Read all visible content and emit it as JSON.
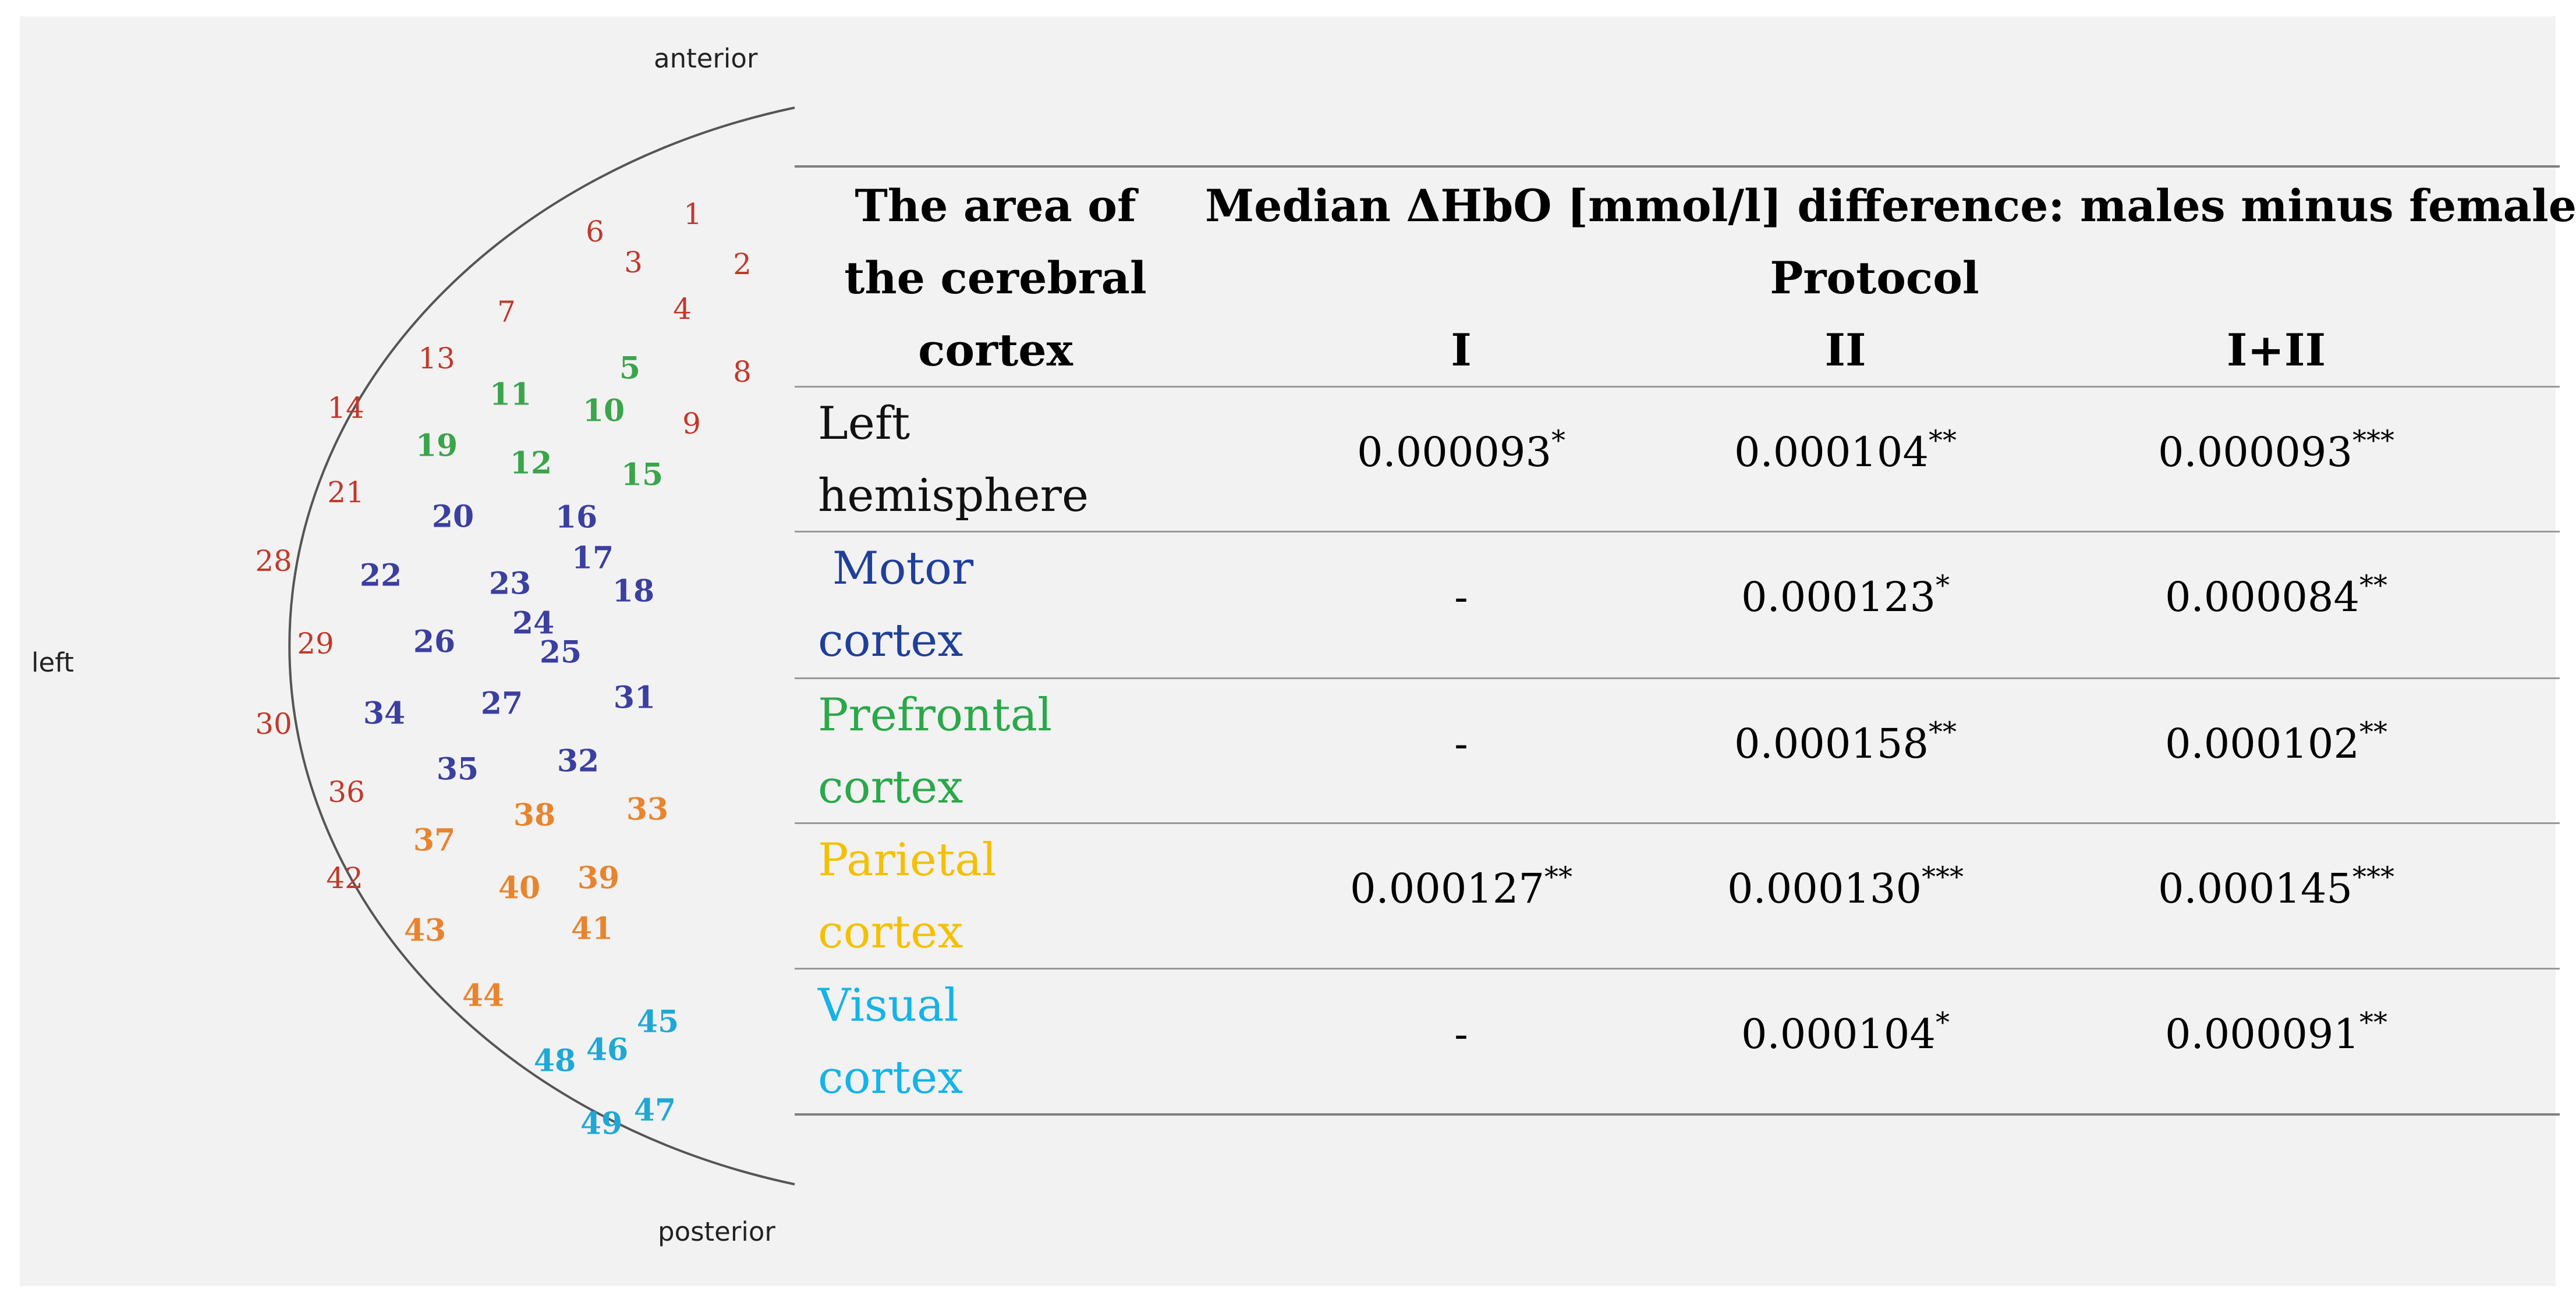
{
  "orientation": {
    "anterior": "anterior",
    "posterior": "posterior",
    "left": "left"
  },
  "colors": {
    "red": "#c0392b",
    "green": "#3aa54a",
    "blue": "#3b3fa0",
    "orange": "#e8842e",
    "cyan": "#1fa8d6",
    "black": "#111111",
    "motor": "#1f3f9a",
    "prefrontal": "#2aa84a",
    "parietal": "#f5c000",
    "visual": "#14b3e8"
  },
  "channels": [
    {
      "label": "1",
      "group": "red"
    },
    {
      "label": "2",
      "group": "red"
    },
    {
      "label": "3",
      "group": "red"
    },
    {
      "label": "4",
      "group": "red"
    },
    {
      "label": "5",
      "group": "green"
    },
    {
      "label": "6",
      "group": "red"
    },
    {
      "label": "7",
      "group": "red"
    },
    {
      "label": "8",
      "group": "red"
    },
    {
      "label": "9",
      "group": "red"
    },
    {
      "label": "10",
      "group": "green"
    },
    {
      "label": "11",
      "group": "green"
    },
    {
      "label": "12",
      "group": "green"
    },
    {
      "label": "13",
      "group": "red"
    },
    {
      "label": "14",
      "group": "red"
    },
    {
      "label": "15",
      "group": "green"
    },
    {
      "label": "16",
      "group": "blue"
    },
    {
      "label": "17",
      "group": "blue"
    },
    {
      "label": "18",
      "group": "blue"
    },
    {
      "label": "19",
      "group": "green"
    },
    {
      "label": "20",
      "group": "blue"
    },
    {
      "label": "21",
      "group": "red"
    },
    {
      "label": "22",
      "group": "blue"
    },
    {
      "label": "23",
      "group": "blue"
    },
    {
      "label": "24",
      "group": "blue"
    },
    {
      "label": "25",
      "group": "blue"
    },
    {
      "label": "26",
      "group": "blue"
    },
    {
      "label": "27",
      "group": "blue"
    },
    {
      "label": "28",
      "group": "red"
    },
    {
      "label": "29",
      "group": "red"
    },
    {
      "label": "30",
      "group": "red"
    },
    {
      "label": "31",
      "group": "blue"
    },
    {
      "label": "32",
      "group": "blue"
    },
    {
      "label": "33",
      "group": "orange"
    },
    {
      "label": "34",
      "group": "blue"
    },
    {
      "label": "35",
      "group": "blue"
    },
    {
      "label": "36",
      "group": "red"
    },
    {
      "label": "37",
      "group": "orange"
    },
    {
      "label": "38",
      "group": "orange"
    },
    {
      "label": "39",
      "group": "orange"
    },
    {
      "label": "40",
      "group": "orange"
    },
    {
      "label": "41",
      "group": "orange"
    },
    {
      "label": "42",
      "group": "red"
    },
    {
      "label": "43",
      "group": "orange"
    },
    {
      "label": "44",
      "group": "orange"
    },
    {
      "label": "45",
      "group": "cyan"
    },
    {
      "label": "46",
      "group": "cyan"
    },
    {
      "label": "47",
      "group": "cyan"
    },
    {
      "label": "48",
      "group": "cyan"
    },
    {
      "label": "49",
      "group": "cyan"
    }
  ],
  "table": {
    "area_header": [
      "The area of",
      "the cerebral",
      "cortex"
    ],
    "main_header": "Median ΔHbO [mmol/l] difference: males minus females",
    "protocol_header": "Protocol",
    "columns": [
      "I",
      "II",
      "I+II"
    ],
    "rows": [
      {
        "label": [
          "Left",
          "hemisphere"
        ],
        "color": "black",
        "cells": [
          {
            "v": "0.000093",
            "s": "*"
          },
          {
            "v": "0.000104",
            "s": "**"
          },
          {
            "v": "0.000093",
            "s": "***"
          }
        ]
      },
      {
        "label": [
          " Motor",
          "cortex"
        ],
        "color": "motor",
        "cells": [
          {
            "v": "-",
            "s": ""
          },
          {
            "v": "0.000123",
            "s": "*"
          },
          {
            "v": "0.000084",
            "s": "**"
          }
        ]
      },
      {
        "label": [
          "Prefrontal",
          "cortex"
        ],
        "color": "prefrontal",
        "cells": [
          {
            "v": "-",
            "s": ""
          },
          {
            "v": "0.000158",
            "s": "**"
          },
          {
            "v": "0.000102",
            "s": "**"
          }
        ]
      },
      {
        "label": [
          "Parietal",
          "cortex"
        ],
        "color": "parietal",
        "cells": [
          {
            "v": "0.000127",
            "s": "**"
          },
          {
            "v": "0.000130",
            "s": "***"
          },
          {
            "v": "0.000145",
            "s": "***"
          }
        ]
      },
      {
        "label": [
          "Visual",
          "cortex"
        ],
        "color": "visual",
        "cells": [
          {
            "v": "-",
            "s": ""
          },
          {
            "v": "0.000104",
            "s": "*"
          },
          {
            "v": "0.000091",
            "s": "**"
          }
        ]
      }
    ]
  }
}
